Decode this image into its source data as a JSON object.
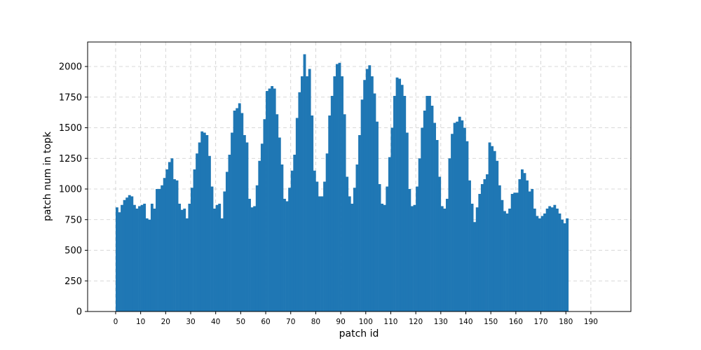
{
  "chart_data": {
    "type": "bar",
    "xlabel": "patch id",
    "ylabel": "patch num in topk",
    "xlim": [
      -11.2,
      206
    ],
    "ylim": [
      0,
      2200
    ],
    "xticks": [
      0,
      10,
      20,
      30,
      40,
      50,
      60,
      70,
      80,
      90,
      100,
      110,
      120,
      130,
      140,
      150,
      160,
      170,
      180,
      190
    ],
    "yticks": [
      0,
      250,
      500,
      750,
      1000,
      1250,
      1500,
      1750,
      2000
    ],
    "grid": true,
    "bar_color": "#1f77b4",
    "grid_color": "#cccccc",
    "values": [
      850,
      810,
      870,
      910,
      930,
      950,
      940,
      870,
      840,
      860,
      870,
      880,
      760,
      750,
      880,
      840,
      1000,
      1000,
      1030,
      1090,
      1160,
      1220,
      1250,
      1080,
      1070,
      880,
      830,
      840,
      760,
      880,
      1010,
      1160,
      1290,
      1380,
      1470,
      1460,
      1440,
      1270,
      1020,
      840,
      870,
      880,
      760,
      980,
      1140,
      1280,
      1460,
      1640,
      1660,
      1700,
      1620,
      1440,
      1380,
      920,
      850,
      860,
      1030,
      1230,
      1370,
      1570,
      1800,
      1820,
      1840,
      1820,
      1610,
      1420,
      1200,
      920,
      900,
      1010,
      1150,
      1280,
      1580,
      1790,
      1920,
      2100,
      1920,
      1980,
      1600,
      1150,
      1060,
      940,
      940,
      1060,
      1290,
      1600,
      1760,
      1920,
      2020,
      2030,
      1920,
      1610,
      1100,
      940,
      880,
      1010,
      1200,
      1440,
      1730,
      1890,
      1980,
      2010,
      1920,
      1780,
      1550,
      1040,
      880,
      870,
      1020,
      1260,
      1500,
      1760,
      1910,
      1900,
      1850,
      1760,
      1460,
      1000,
      860,
      870,
      1020,
      1250,
      1500,
      1640,
      1760,
      1760,
      1680,
      1540,
      1400,
      1100,
      860,
      840,
      920,
      1250,
      1450,
      1540,
      1550,
      1590,
      1560,
      1500,
      1390,
      1070,
      880,
      730,
      850,
      960,
      1040,
      1080,
      1120,
      1380,
      1350,
      1310,
      1230,
      1030,
      910,
      820,
      800,
      840,
      960,
      970,
      970,
      1080,
      1160,
      1130,
      1070,
      980,
      1000,
      840,
      780,
      760,
      780,
      800,
      840,
      860,
      850,
      870,
      840,
      800,
      750,
      720,
      760
    ]
  }
}
